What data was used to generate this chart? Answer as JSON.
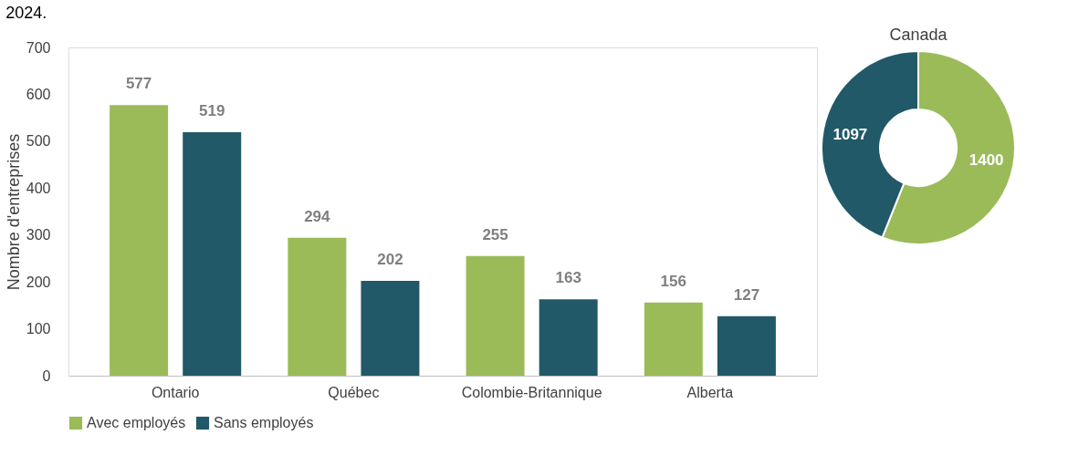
{
  "chart_data": [
    {
      "type": "bar",
      "title": "2024.",
      "ylabel": "Nombre d'entreprises",
      "categories": [
        "Ontario",
        "Québec",
        "Colombie-Britannique",
        "Alberta"
      ],
      "series": [
        {
          "name": "Avec employés",
          "color": "#9bbb59",
          "values": [
            577,
            294,
            255,
            156
          ]
        },
        {
          "name": "Sans employés",
          "color": "#215968",
          "values": [
            519,
            202,
            163,
            127
          ]
        }
      ],
      "ylim": [
        0,
        700
      ],
      "yticks": [
        0,
        100,
        200,
        300,
        400,
        500,
        600,
        700
      ],
      "grid": false,
      "legend": "bottom",
      "data_labels": true
    },
    {
      "type": "donut",
      "title": "Canada",
      "categories": [
        null,
        null
      ],
      "values": [
        1400,
        1097
      ],
      "colors": [
        "#9bbb59",
        "#215968"
      ],
      "data_labels": true
    }
  ]
}
